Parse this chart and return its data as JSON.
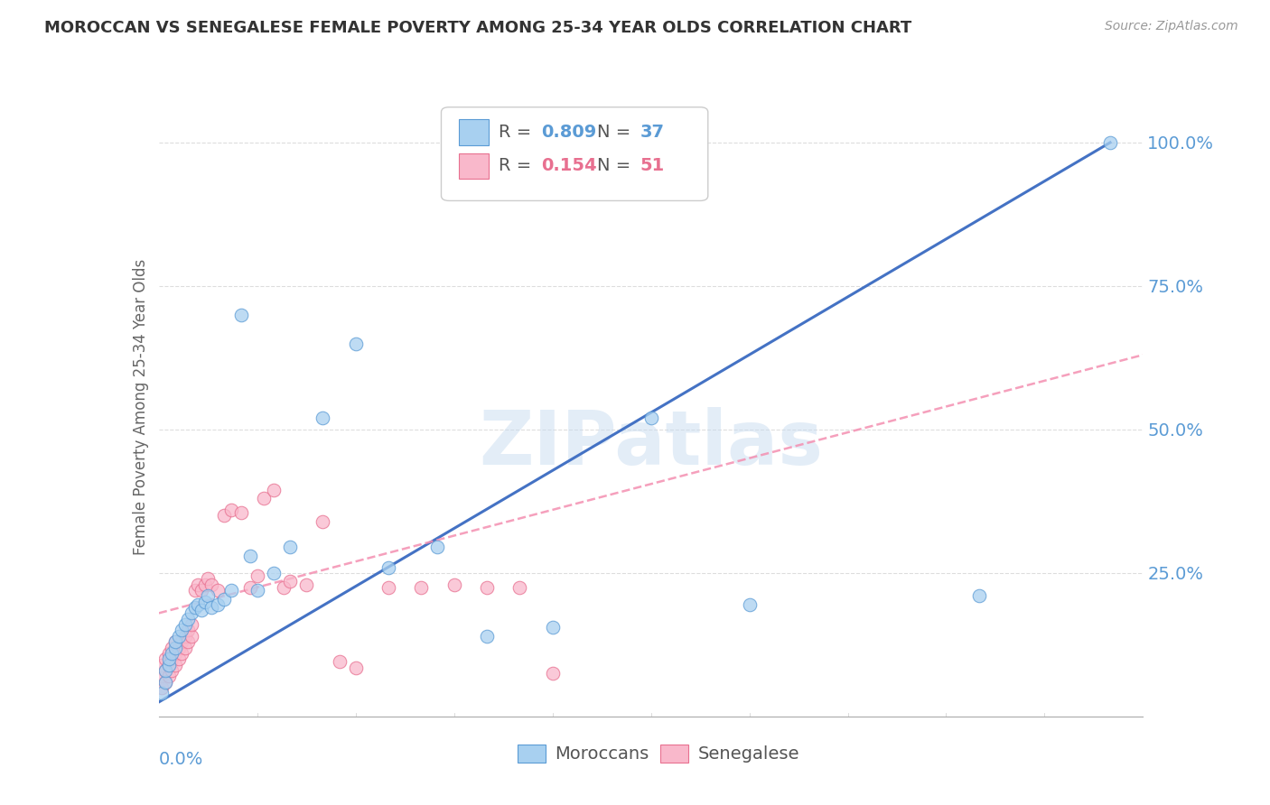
{
  "title": "MOROCCAN VS SENEGALESE FEMALE POVERTY AMONG 25-34 YEAR OLDS CORRELATION CHART",
  "source": "Source: ZipAtlas.com",
  "ylabel": "Female Poverty Among 25-34 Year Olds",
  "watermark": "ZIPatlas",
  "legend_moroccan": "Moroccans",
  "legend_senegalese": "Senegalese",
  "r_moroccan": "0.809",
  "n_moroccan": "37",
  "r_senegalese": "0.154",
  "n_senegalese": "51",
  "blue_fill": "#A8D0F0",
  "blue_edge": "#5B9BD5",
  "pink_fill": "#F9B8CB",
  "pink_edge": "#E87090",
  "blue_line": "#4472C4",
  "pink_line": "#F48FB1",
  "axis_label_color": "#5B9BD5",
  "grid_color": "#DDDDDD",
  "title_color": "#333333",
  "watermark_color": "#C8DCF0",
  "moroc_x": [
    0.001,
    0.002,
    0.002,
    0.003,
    0.003,
    0.004,
    0.005,
    0.005,
    0.006,
    0.007,
    0.008,
    0.009,
    0.01,
    0.011,
    0.012,
    0.013,
    0.014,
    0.015,
    0.016,
    0.018,
    0.02,
    0.022,
    0.025,
    0.028,
    0.03,
    0.035,
    0.04,
    0.05,
    0.06,
    0.07,
    0.085,
    0.1,
    0.12,
    0.15,
    0.18,
    0.25,
    0.29
  ],
  "moroc_y": [
    0.04,
    0.06,
    0.08,
    0.09,
    0.1,
    0.11,
    0.12,
    0.13,
    0.14,
    0.15,
    0.16,
    0.17,
    0.18,
    0.19,
    0.195,
    0.185,
    0.2,
    0.21,
    0.19,
    0.195,
    0.205,
    0.22,
    0.7,
    0.28,
    0.22,
    0.25,
    0.295,
    0.52,
    0.65,
    0.26,
    0.295,
    0.14,
    0.155,
    0.52,
    0.195,
    0.21,
    1.0
  ],
  "sene_x": [
    0.001,
    0.001,
    0.001,
    0.002,
    0.002,
    0.002,
    0.003,
    0.003,
    0.003,
    0.004,
    0.004,
    0.004,
    0.005,
    0.005,
    0.005,
    0.006,
    0.006,
    0.007,
    0.007,
    0.008,
    0.008,
    0.009,
    0.009,
    0.01,
    0.01,
    0.011,
    0.012,
    0.013,
    0.014,
    0.015,
    0.016,
    0.018,
    0.02,
    0.022,
    0.025,
    0.028,
    0.03,
    0.032,
    0.035,
    0.038,
    0.04,
    0.045,
    0.05,
    0.055,
    0.06,
    0.07,
    0.08,
    0.09,
    0.1,
    0.11,
    0.12
  ],
  "sene_y": [
    0.05,
    0.07,
    0.09,
    0.06,
    0.08,
    0.1,
    0.07,
    0.09,
    0.11,
    0.08,
    0.1,
    0.12,
    0.09,
    0.11,
    0.13,
    0.1,
    0.12,
    0.11,
    0.13,
    0.12,
    0.14,
    0.13,
    0.15,
    0.14,
    0.16,
    0.22,
    0.23,
    0.22,
    0.23,
    0.24,
    0.23,
    0.22,
    0.35,
    0.36,
    0.355,
    0.225,
    0.245,
    0.38,
    0.395,
    0.225,
    0.235,
    0.23,
    0.34,
    0.095,
    0.085,
    0.225,
    0.225,
    0.23,
    0.225,
    0.225,
    0.075
  ],
  "xlim": [
    0.0,
    0.3
  ],
  "ylim": [
    0.0,
    1.08
  ],
  "ytick_vals": [
    0.25,
    0.5,
    0.75,
    1.0
  ],
  "ytick_labels": [
    "25.0%",
    "50.0%",
    "75.0%",
    "100.0%"
  ]
}
